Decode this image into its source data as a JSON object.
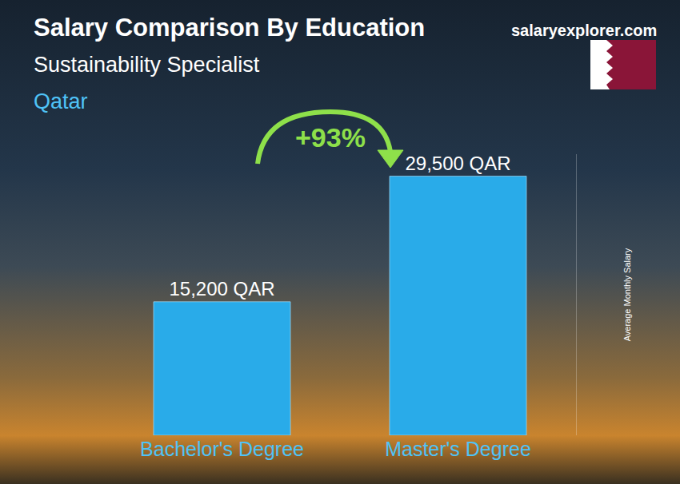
{
  "chart_data": {
    "type": "bar",
    "title": "Salary Comparison By Education",
    "subtitle": "Sustainability Specialist",
    "annotations": [
      {
        "text": "Qatar"
      },
      {
        "text": "salaryexplorer.com"
      },
      {
        "text": "+93%"
      }
    ],
    "ylabel": "Average Monthly Salary",
    "categories": [
      "Bachelor's Degree",
      "Master's Degree"
    ],
    "values": [
      15200,
      29500
    ],
    "value_labels": [
      "15,200 QAR",
      "29,500 QAR"
    ],
    "data_labels": true,
    "color": "#29abe9",
    "ylim": [
      0,
      32000
    ],
    "tick_labels": "x",
    "grid": false
  }
}
